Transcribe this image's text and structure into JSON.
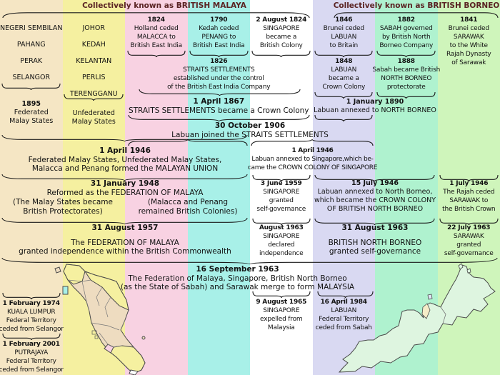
{
  "headers": {
    "british_malaya": "Collectively known as BRITISH MALAYA",
    "british_borneo": "Collectively known as BRITISH BORNEO"
  },
  "colors": {
    "header_text": "#5a2323",
    "brace": "#1a1a1a",
    "federated_malay_states": "#f5e6c4",
    "unfederated_malay_states": "#f5f0a0",
    "malacca": "#f8d2e2",
    "penang": "#a8f0e8",
    "singapore": "#ffffff",
    "labuan": "#d9d9f2",
    "north_borneo_sabah": "#aff2cf",
    "sarawak": "#cff5bb"
  },
  "columns": [
    {
      "name": "federated-malay-states",
      "color": "#f5e6c4"
    },
    {
      "name": "unfederated-malay-states",
      "color": "#f5f0a0"
    },
    {
      "name": "malacca",
      "color": "#f8d2e2"
    },
    {
      "name": "penang",
      "color": "#a8f0e8"
    },
    {
      "name": "singapore",
      "color": "#ffffff"
    },
    {
      "name": "labuan",
      "color": "#d9d9f2"
    },
    {
      "name": "north-borneo-sabah",
      "color": "#aff2cf"
    },
    {
      "name": "sarawak",
      "color": "#cff5bb"
    }
  ],
  "blocks": {
    "fms_list": {
      "lines": [
        "NEGERI SEMBILAN",
        "PAHANG",
        "PERAK",
        "SELANGOR"
      ]
    },
    "ums_list": {
      "lines": [
        "JOHOR",
        "KEDAH",
        "KELANTAN",
        "PERLIS",
        "TERENGGANU"
      ]
    },
    "b1895": {
      "date": "1895",
      "lines": [
        "Federated",
        "Malay States"
      ]
    },
    "ums": {
      "lines": [
        "Unfederated",
        "Malay States"
      ]
    },
    "b1824m": {
      "date": "1824",
      "lines": [
        "Holland ceded",
        "MALACCA to",
        "British East India"
      ]
    },
    "b1790": {
      "date": "1790",
      "lines": [
        "Kedah ceded",
        "PENANG to",
        "British East India"
      ]
    },
    "b1824s": {
      "date": "2 August 1824",
      "lines": [
        "SINGAPORE",
        "became a",
        "British Colony"
      ]
    },
    "b1826": {
      "date": "1826",
      "lines": [
        "STRAITS SETTLEMENTS",
        "established under the control",
        "of the British East India Company"
      ]
    },
    "b1867": {
      "date": "1 April 1867",
      "lines": [
        "STRAITS SETTLEMENTS became a Crown Colony"
      ]
    },
    "b1906": {
      "date": "30 October 1906",
      "lines": [
        "Labuan joined the STRAITS SETTLEMENTS"
      ]
    },
    "b1846": {
      "date": "1846",
      "lines": [
        "Brunei ceded",
        "LABUAN",
        "to Britain"
      ]
    },
    "b1848": {
      "date": "1848",
      "lines": [
        "LABUAN",
        "became a",
        "Crown Colony"
      ]
    },
    "b1882": {
      "date": "1882",
      "lines": [
        "SABAH governed",
        "by British North",
        "Borneo Company"
      ]
    },
    "b1888": {
      "date": "1888",
      "lines": [
        "Sabah became British",
        "NORTH BORNEO",
        "protectorate"
      ]
    },
    "b1841": {
      "date": "1841",
      "lines": [
        "Brunei ceded",
        "SARAWAK",
        "to the White",
        "Rajah Dynasty",
        "of Sarawak"
      ]
    },
    "b1890": {
      "date": "1 January 1890",
      "lines": [
        "Labuan annexed to NORTH BORNEO"
      ]
    },
    "b1946L": {
      "date": "1 April 1946",
      "lines": [
        "Federated Malay States, Unfederated Malay States,",
        "Malacca and Penang formed the MALAYAN UNION"
      ]
    },
    "b1946R": {
      "date": "1 April 1946",
      "lines": [
        "Labuan annexed to Singapore,which be-",
        "came the CROWN COLONY OF SINGAPORE"
      ]
    },
    "b1948": {
      "date": "31 January 1948",
      "lines": [
        "Reformed as the FEDERATION OF MALAYA"
      ]
    },
    "b1948a": {
      "lines": [
        "(The Malay States became",
        "British Protectorates)"
      ]
    },
    "b1948b": {
      "lines": [
        "(Malacca and Penang",
        "remained British Colonies)"
      ]
    },
    "b1959": {
      "date": "3 June 1959",
      "lines": [
        "SINGAPORE",
        "granted",
        "self-governance"
      ]
    },
    "b1946NB": {
      "date": "15 July 1946",
      "lines": [
        "Labuan annexed to North Borneo,",
        "which became the CROWN COLONY",
        "OF BRITISH NORTH BORNEO"
      ]
    },
    "b1946SW": {
      "date": "1 July 1946",
      "lines": [
        "The Rajah ceded",
        "SARAWAK to",
        "the British Crown"
      ]
    },
    "b1957": {
      "date": "31 August 1957",
      "lines": [
        "The FEDERATION OF MALAYA",
        "granted independence within the British Commonwealth"
      ]
    },
    "b1963sg": {
      "date": "August 1963",
      "lines": [
        "SINGAPORE",
        "declared",
        "independence"
      ]
    },
    "b1963nb": {
      "date": "31 August 1963",
      "lines": [
        "BRITISH NORTH BORNEO",
        "granted self-governance"
      ]
    },
    "b1963sw": {
      "date": "22 July 1963",
      "lines": [
        "SARAWAK",
        "granted",
        "self-governance"
      ]
    },
    "b1963my": {
      "date": "16 September 1963",
      "lines": [
        "The Federation of Malaya, Singapore, British North Borneo",
        "(as the State of Sabah) and Sarawak merge to form MALAYSIA"
      ]
    },
    "b1965": {
      "date": "9 August 1965",
      "lines": [
        "SINGAPORE",
        "expelled from",
        "Malaysia"
      ]
    },
    "b1984": {
      "date": "16 April 1984",
      "lines": [
        "LABUAN",
        "Federal Territory",
        "ceded from Sabah"
      ]
    },
    "b1974": {
      "date": "1 February 1974",
      "lines": [
        "KUALA LUMPUR",
        "Federal Territory",
        "ceded from Selangor"
      ]
    },
    "b2001": {
      "date": "1 February 2001",
      "lines": [
        "PUTRAJAYA",
        "Federal Territory",
        "ceded from Selangor"
      ]
    }
  }
}
